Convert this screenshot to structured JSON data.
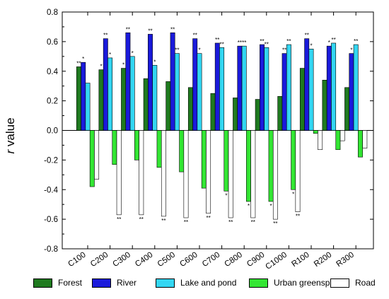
{
  "chart_data": {
    "type": "bar",
    "ylabel_italic": "r",
    "ylabel_rest": " value",
    "ylim": [
      -0.8,
      0.8
    ],
    "yticks": [
      -0.8,
      -0.6,
      -0.4,
      -0.2,
      0.0,
      0.2,
      0.4,
      0.6,
      0.8
    ],
    "ytick_labels": [
      "-0.8",
      "-0.6",
      "-0.4",
      "-0.2",
      "0.0",
      "0.2",
      "0.4",
      "0.6",
      "0.8"
    ],
    "categories": [
      "C100",
      "C200",
      "C300",
      "C400",
      "C500",
      "C600",
      "C700",
      "C800",
      "C900",
      "C1000",
      "R100",
      "R200",
      "R300"
    ],
    "legend_position": "bottom",
    "series": [
      {
        "name": "Forest",
        "color": "#1f7a1f",
        "values": [
          0.43,
          0.41,
          0.42,
          0.35,
          0.33,
          0.29,
          0.25,
          0.22,
          0.21,
          0.23,
          0.42,
          0.34,
          0.29
        ],
        "labels": [
          "**",
          "*",
          "*",
          "",
          "",
          "",
          "",
          "",
          "",
          "",
          "",
          "",
          ""
        ]
      },
      {
        "name": "River",
        "color": "#1a1adb",
        "values": [
          0.46,
          0.62,
          0.66,
          0.65,
          0.66,
          0.62,
          0.59,
          0.57,
          0.58,
          0.52,
          0.62,
          0.57,
          0.52
        ],
        "labels": [
          "*",
          "**",
          "**",
          "**",
          "**",
          "**",
          "**",
          "**",
          "**",
          "**",
          "**",
          "*",
          "*"
        ]
      },
      {
        "name": "Lake and pond",
        "color": "#33d6f2",
        "values": [
          0.32,
          0.49,
          0.5,
          0.44,
          0.52,
          0.52,
          0.56,
          0.57,
          0.56,
          0.58,
          0.55,
          0.59,
          0.58
        ],
        "labels": [
          "",
          "*",
          "*",
          "*",
          "**",
          "*",
          "**",
          "**",
          "**",
          "**",
          "*",
          "**",
          "**"
        ]
      },
      {
        "name": "Urban greenspace",
        "color": "#33e633",
        "values": [
          -0.38,
          -0.23,
          -0.2,
          -0.25,
          -0.28,
          -0.39,
          -0.41,
          -0.48,
          -0.48,
          -0.4,
          -0.02,
          -0.13,
          -0.18
        ],
        "labels": [
          "",
          "",
          "",
          "",
          "",
          "",
          "*",
          "*",
          "*",
          "*",
          "",
          "",
          ""
        ]
      },
      {
        "name": "Road",
        "color": "#ffffff",
        "values": [
          -0.33,
          -0.57,
          -0.57,
          -0.58,
          -0.59,
          -0.56,
          -0.59,
          -0.59,
          -0.6,
          -0.55,
          -0.13,
          -0.07,
          -0.12
        ],
        "labels": [
          "",
          "**",
          "**",
          "**",
          "**",
          "**",
          "**",
          "**",
          "**",
          "**",
          "",
          "",
          ""
        ]
      }
    ]
  }
}
